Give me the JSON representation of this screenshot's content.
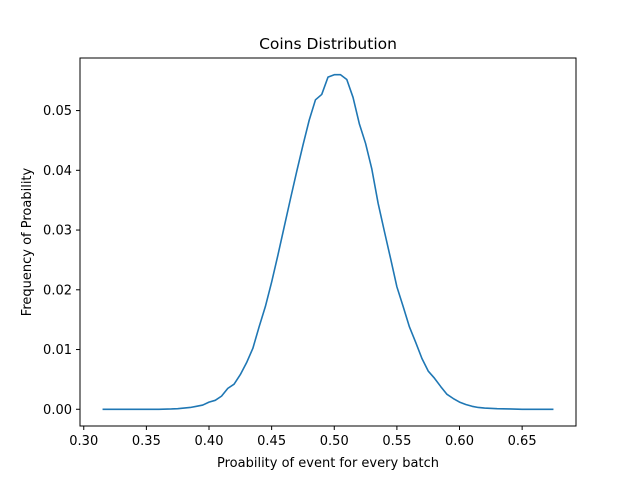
{
  "chart_data": {
    "type": "line",
    "title": "Coins Distribution",
    "xlabel": "Proability of event for every batch",
    "ylabel": "Frequency of Proability",
    "xlim": [
      0.297,
      0.693
    ],
    "ylim": [
      -0.0028,
      0.0588
    ],
    "xticks": [
      0.3,
      0.35,
      0.4,
      0.45,
      0.5,
      0.55,
      0.6,
      0.65
    ],
    "xtick_labels": [
      "0.30",
      "0.35",
      "0.40",
      "0.45",
      "0.50",
      "0.55",
      "0.60",
      "0.65"
    ],
    "yticks": [
      0.0,
      0.01,
      0.02,
      0.03,
      0.04,
      0.05
    ],
    "ytick_labels": [
      "0.00",
      "0.01",
      "0.02",
      "0.03",
      "0.04",
      "0.05"
    ],
    "grid": false,
    "color": "#1f77b4",
    "series": [
      {
        "x": [
          0.315,
          0.33,
          0.345,
          0.36,
          0.37,
          0.375,
          0.38,
          0.385,
          0.39,
          0.395,
          0.4,
          0.405,
          0.41,
          0.415,
          0.42,
          0.425,
          0.43,
          0.435,
          0.44,
          0.445,
          0.45,
          0.455,
          0.46,
          0.465,
          0.47,
          0.475,
          0.48,
          0.485,
          0.49,
          0.495,
          0.5,
          0.505,
          0.51,
          0.515,
          0.52,
          0.525,
          0.53,
          0.535,
          0.54,
          0.545,
          0.55,
          0.555,
          0.56,
          0.565,
          0.57,
          0.575,
          0.58,
          0.585,
          0.59,
          0.595,
          0.6,
          0.605,
          0.61,
          0.615,
          0.62,
          0.63,
          0.64,
          0.65,
          0.66,
          0.675
        ],
        "values": [
          0.0,
          0.0,
          0.0,
          0.0,
          5e-05,
          0.0001,
          0.0002,
          0.0003,
          0.0005,
          0.0007,
          0.0012,
          0.0015,
          0.0022,
          0.0035,
          0.0042,
          0.0058,
          0.0078,
          0.0102,
          0.0138,
          0.0172,
          0.0213,
          0.0258,
          0.0305,
          0.0352,
          0.0398,
          0.0442,
          0.0484,
          0.0518,
          0.0527,
          0.0556,
          0.056,
          0.056,
          0.0552,
          0.0522,
          0.0478,
          0.0445,
          0.0402,
          0.0345,
          0.0298,
          0.0252,
          0.0205,
          0.0172,
          0.0138,
          0.0112,
          0.0085,
          0.0064,
          0.0052,
          0.0038,
          0.0025,
          0.0018,
          0.0012,
          0.0008,
          0.0005,
          0.0003,
          0.0002,
          0.0001,
          5e-05,
          0.0,
          0.0,
          0.0
        ]
      }
    ]
  }
}
